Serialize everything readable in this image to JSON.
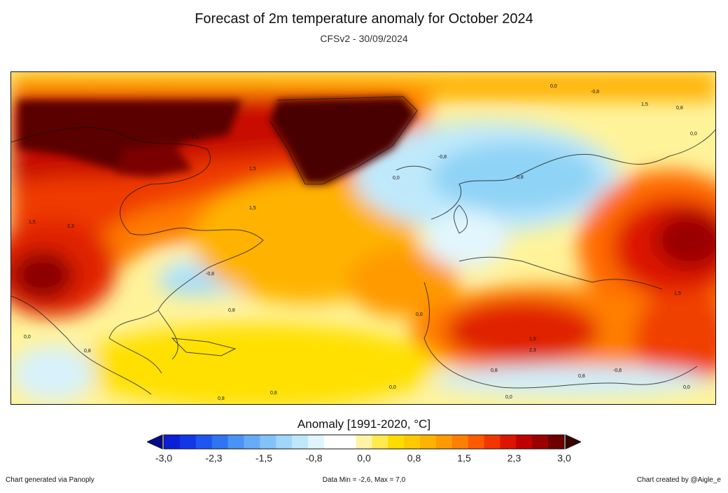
{
  "title": "Forecast of 2m temperature anomaly for October 2024",
  "subtitle": "CFSv2 - 30/09/2024",
  "legend": {
    "title": "Anomaly [1991-2020, °C]",
    "ticks": [
      "-3,0",
      "-2,3",
      "-1,5",
      "-0,8",
      "0,0",
      "0,8",
      "1,5",
      "2,3",
      "3,0"
    ],
    "colors": [
      "#0a1fd6",
      "#1336e6",
      "#1f55f0",
      "#2f74f2",
      "#4a93f5",
      "#66abf7",
      "#82c2f9",
      "#9fd6fa",
      "#bfe7fb",
      "#dff4fd",
      "#ffffff",
      "#ffffff",
      "#fff3a6",
      "#ffe94d",
      "#ffdc00",
      "#ffc800",
      "#ffb300",
      "#ff9a00",
      "#ff7f00",
      "#ff5a00",
      "#f23500",
      "#dc1400",
      "#c00000",
      "#9a0000",
      "#6e0000"
    ],
    "under_color": "#000a8c",
    "over_color": "#3c0000"
  },
  "map": {
    "contour_labels": [
      "0,0",
      "-0,8",
      "1,5",
      "0,8",
      "0,0",
      "1,5",
      "1,5",
      "1,5",
      "1,5",
      "2,3",
      "1,5",
      "-0,8",
      "0,8",
      "0,8",
      "0,0",
      "0,0",
      "0,8",
      "1,5",
      "2,3",
      "1,5",
      "0,8",
      "0,8",
      "0,0",
      "-0,8",
      "0,0",
      "0,8",
      "0,0",
      "0,8",
      "-0,8",
      "0,0"
    ]
  },
  "footer": {
    "left": "Chart generated via Panoply",
    "center": "Data Min = -2,6, Max = 7,0",
    "right": "Chart created by @Aigle_e"
  }
}
